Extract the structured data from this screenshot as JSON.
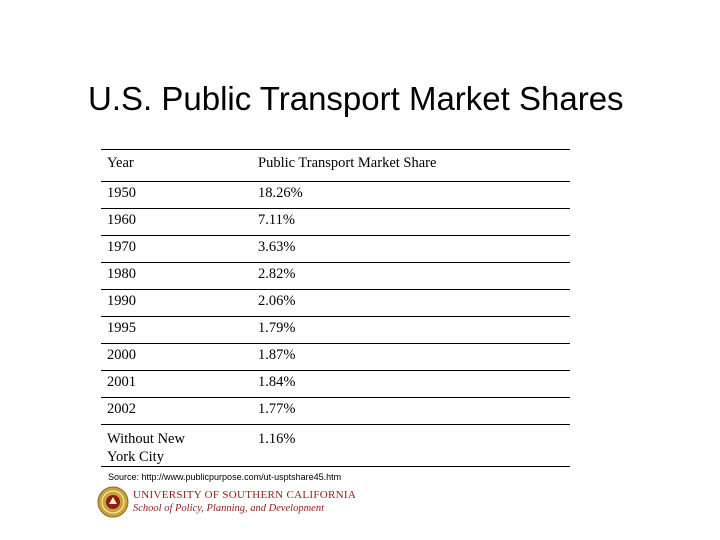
{
  "title": "U.S. Public Transport Market Shares",
  "table": {
    "headers": [
      "Year",
      "Public Transport Market Share"
    ],
    "rows": [
      {
        "year": "1950",
        "share": "18.26%"
      },
      {
        "year": "1960",
        "share": "7.11%"
      },
      {
        "year": "1970",
        "share": "3.63%"
      },
      {
        "year": "1980",
        "share": "2.82%"
      },
      {
        "year": "1990",
        "share": "2.06%"
      },
      {
        "year": "1995",
        "share": "1.79%"
      },
      {
        "year": "2000",
        "share": "1.87%"
      },
      {
        "year": "2001",
        "share": "1.84%"
      },
      {
        "year": "2002",
        "share": "1.77%"
      },
      {
        "year": "Without New York City",
        "share": "1.16%"
      }
    ]
  },
  "source": "Source: http://www.publicpurpose.com/ut-usptshare45.htm",
  "footer": {
    "university": "UNIVERSITY OF SOUTHERN CALIFORNIA",
    "school": "School of Policy, Planning, and Development",
    "seal_icon": "university-seal-icon",
    "brand_color": "#8a1e16",
    "seal_color": "#c9a23a"
  }
}
